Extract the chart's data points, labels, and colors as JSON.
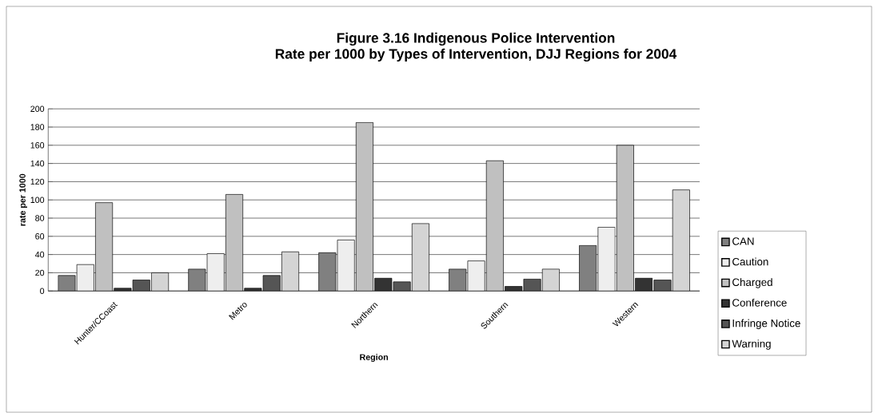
{
  "chart_data": {
    "type": "bar",
    "title": "Figure 3.16 Indigenous Police Intervention",
    "subtitle": "Rate per 1000 by Types of Intervention, DJJ Regions for 2004",
    "xlabel": "Region",
    "ylabel": "rate per 1000",
    "categories": [
      "Hunter/CCoast",
      "Metro",
      "Northern",
      "Southern",
      "Western"
    ],
    "series": [
      {
        "name": "CAN",
        "color": "#808080",
        "values": [
          17,
          24,
          42,
          24,
          50
        ]
      },
      {
        "name": "Caution",
        "color": "#eeeeee",
        "values": [
          29,
          41,
          56,
          33,
          70
        ]
      },
      {
        "name": "Charged",
        "color": "#c0c0c0",
        "values": [
          97,
          106,
          185,
          143,
          160
        ]
      },
      {
        "name": "Conference",
        "color": "#333333",
        "values": [
          3,
          3,
          14,
          5,
          14
        ]
      },
      {
        "name": "Infringe Notice",
        "color": "#555555",
        "values": [
          12,
          17,
          10,
          13,
          12
        ]
      },
      {
        "name": "Warning",
        "color": "#d4d4d4",
        "values": [
          20,
          43,
          74,
          24,
          111
        ]
      }
    ],
    "ylim": [
      0,
      200
    ],
    "yticks": [
      0,
      20,
      40,
      60,
      80,
      100,
      120,
      140,
      160,
      180,
      200
    ],
    "grid": "y",
    "legend": "right"
  }
}
